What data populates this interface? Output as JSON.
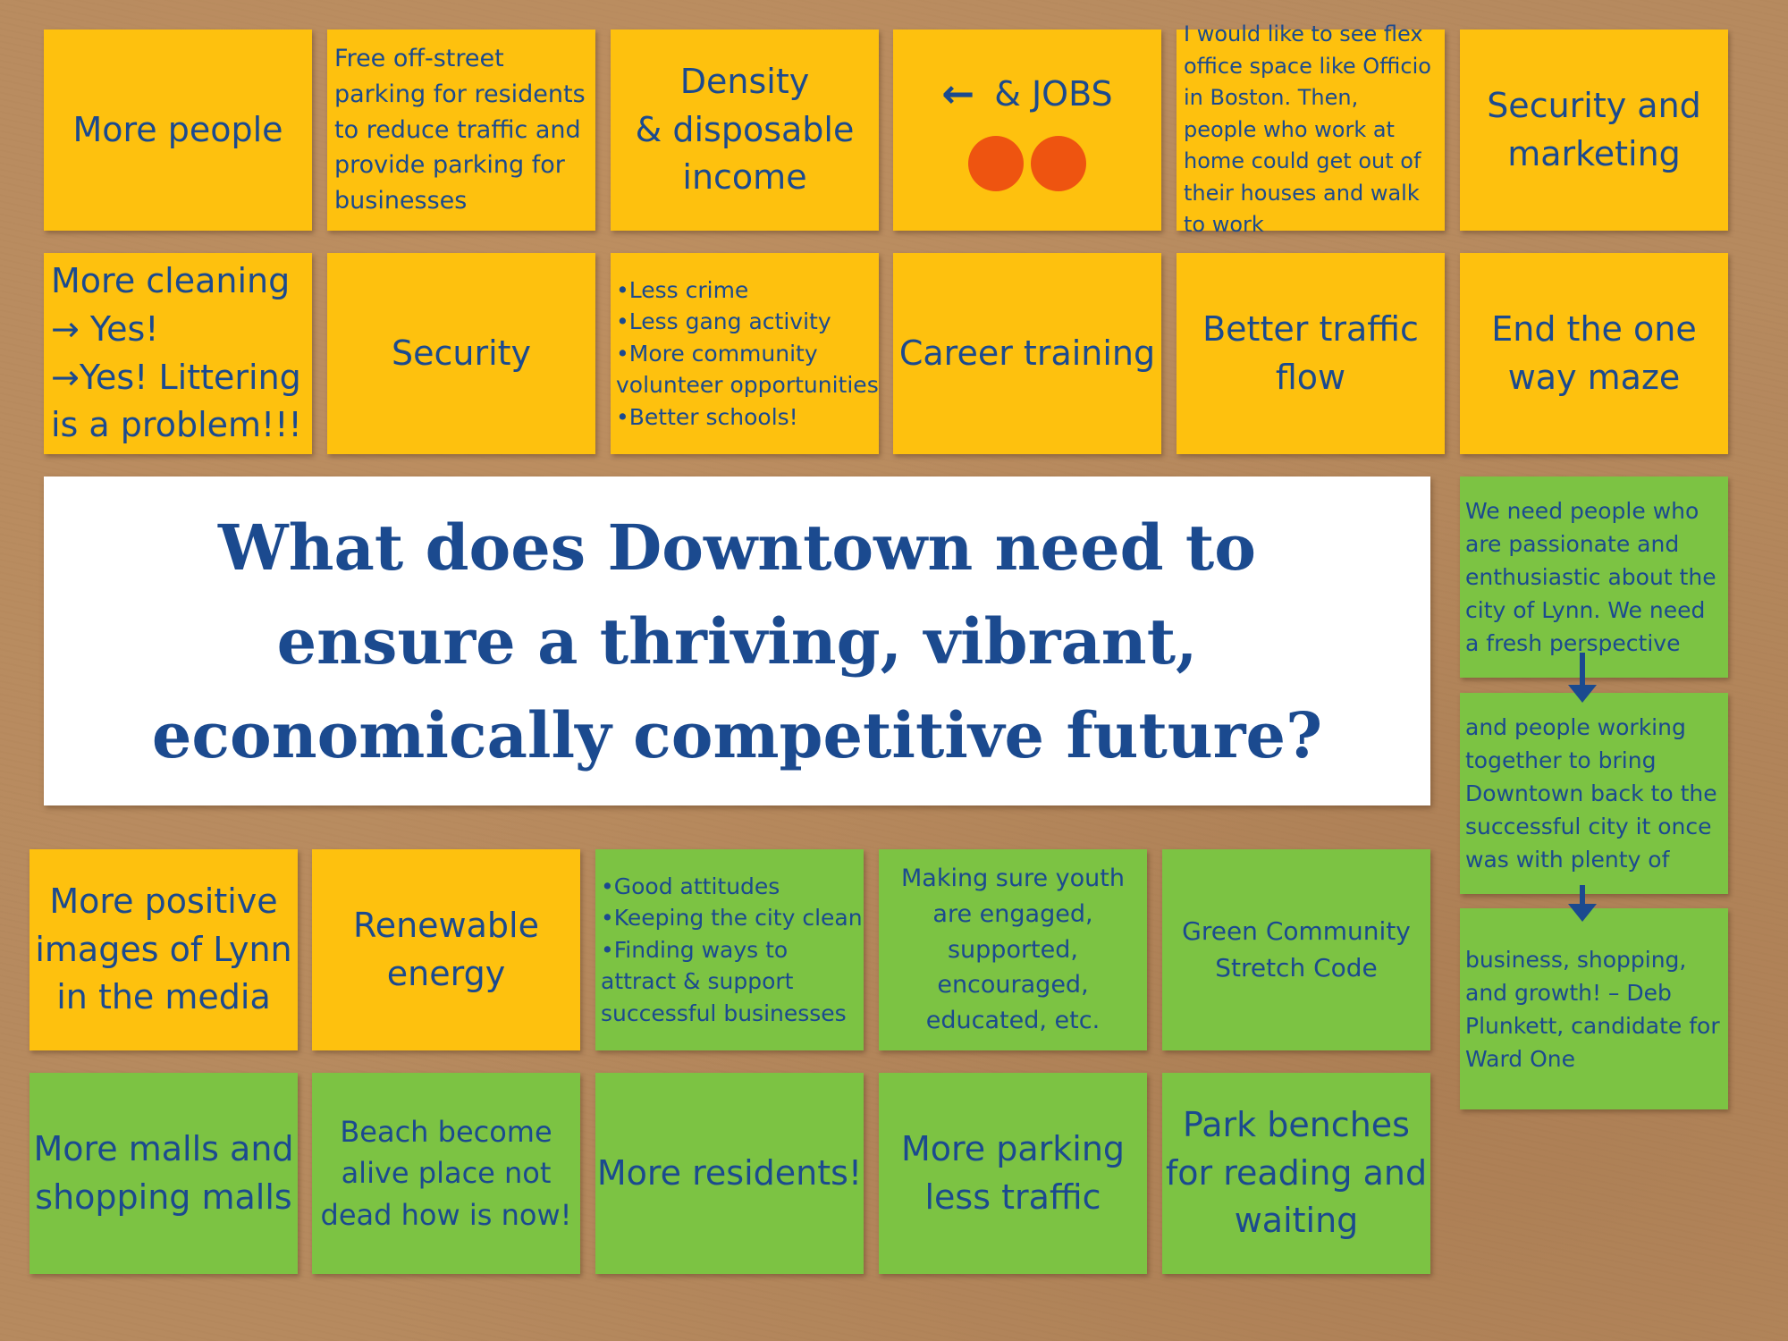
{
  "title": "What does Downtown need to ensure a thriving, vibrant, economically competitive future?",
  "title_lines": [
    "What does Downtown need to",
    "ensure a thriving, vibrant,",
    "economically competitive future?"
  ],
  "colors": {
    "yellow_note": "#fec10e",
    "green_note": "#7cc343",
    "text": "#1b4a8f",
    "dot": "#ee5410",
    "board": "#b68a5f"
  },
  "notes": {
    "more_people": "More people",
    "parking": "Free off-street parking for residents to reduce traffic and provide parking for businesses",
    "density": [
      "Density",
      "& disposable",
      "income"
    ],
    "jobs": {
      "arrow": "←",
      "text": "& JOBS",
      "dots": 2
    },
    "flex": "I would like to see flex office space like Officio in Boston. Then, people who work at home could get out of their houses and walk to work",
    "security_marketing": [
      "Security and",
      "marketing"
    ],
    "cleaning": [
      "More cleaning",
      "→ Yes!",
      "→Yes! Littering",
      "is a problem!!!"
    ],
    "security": "Security",
    "crime_list": [
      "•Less crime",
      "•Less gang activity",
      "•More community",
      "volunteer opportunities",
      "•Better schools!"
    ],
    "career": "Career training",
    "traffic_flow": [
      "Better traffic",
      "flow"
    ],
    "one_way": [
      "End the one",
      "way maze"
    ],
    "passionate_1": "We need people who are passionate and enthusiastic about the city of Lynn. We need a fresh perspective",
    "passionate_2": "and people working together to bring Downtown back to the successful city it once was with plenty of",
    "passionate_3": "business, shopping, and growth! – Deb Plunkett, candidate for Ward One",
    "positive_images": [
      "More positive",
      "images of Lynn",
      "in the media"
    ],
    "renewable": [
      "Renewable",
      "energy"
    ],
    "attitudes_list": [
      "•Good attitudes",
      "•Keeping the city clean",
      "•Finding ways to",
      "attract & support",
      "successful businesses"
    ],
    "youth": [
      "Making sure youth",
      "are engaged,",
      "supported,",
      "encouraged,",
      "educated, etc."
    ],
    "green_code": [
      "Green Community",
      "Stretch Code"
    ],
    "malls": [
      "More malls and",
      "shopping malls"
    ],
    "beach": [
      "Beach become",
      "alive place not",
      "dead how is now!"
    ],
    "residents": "More residents!",
    "more_parking": [
      "More parking",
      "less traffic"
    ],
    "benches": [
      "Park benches",
      "for reading and",
      "waiting"
    ]
  }
}
